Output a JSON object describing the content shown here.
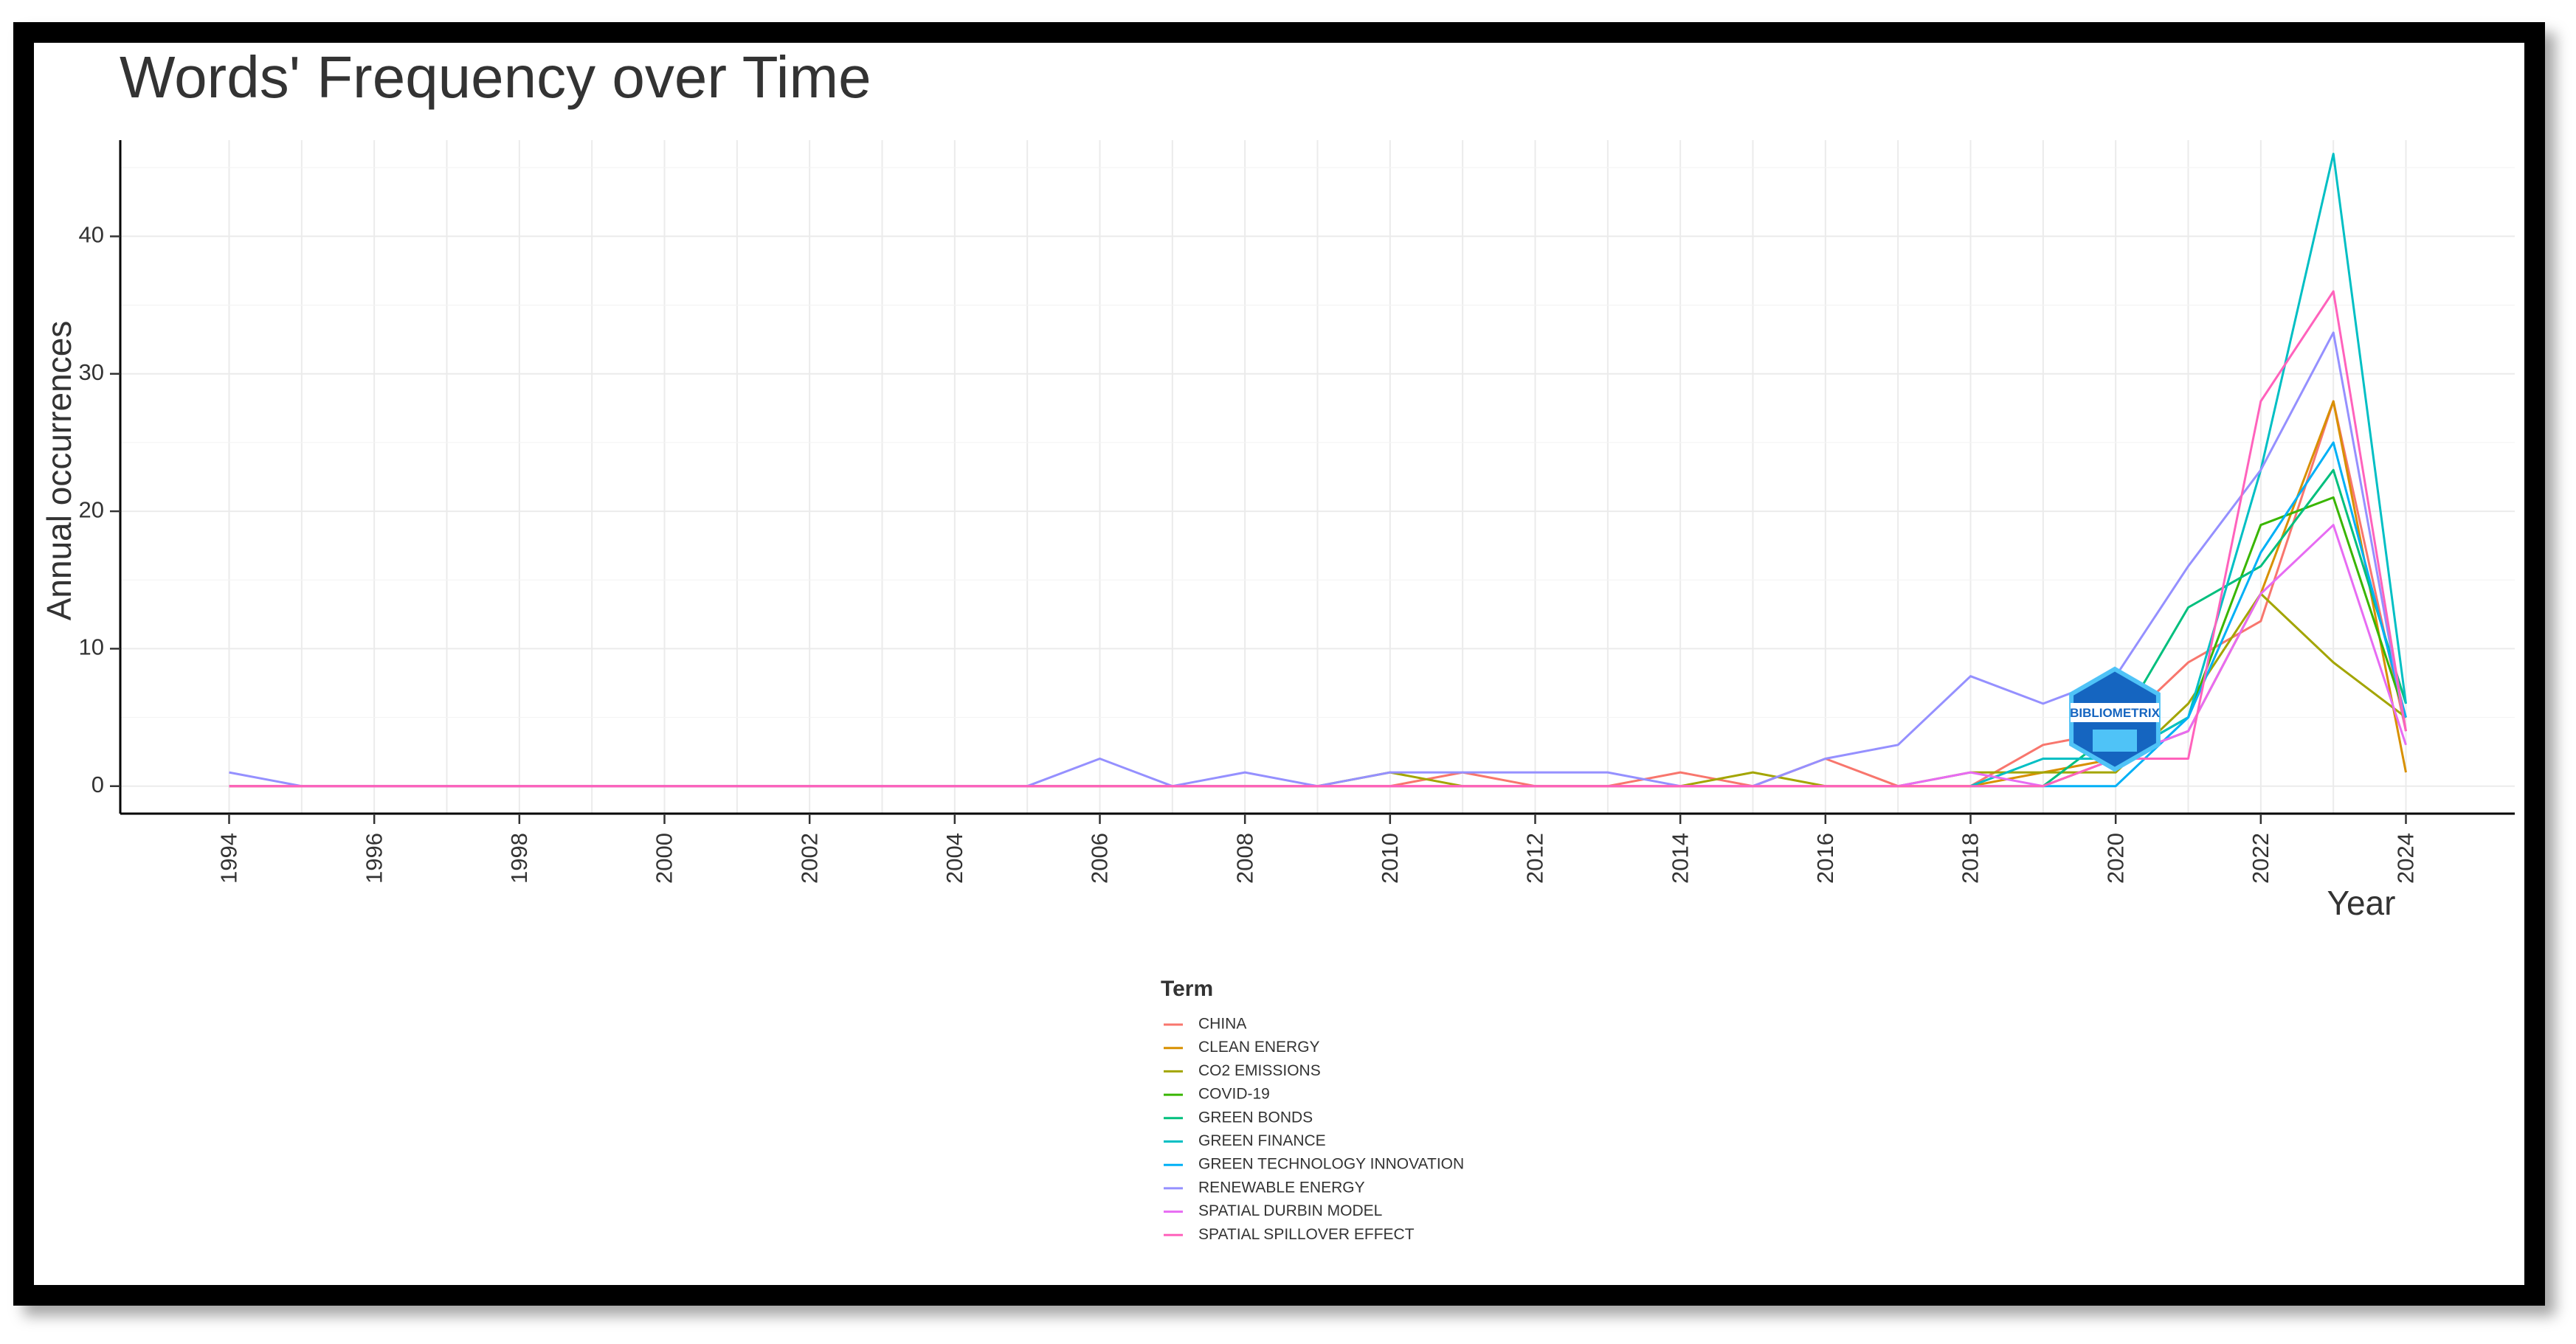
{
  "chart_data": {
    "type": "line",
    "title": "Words' Frequency over Time",
    "xlabel": "Year",
    "ylabel": "Annual occurrences",
    "xlim": [
      1992.5,
      2025.5
    ],
    "ylim": [
      -2,
      47
    ],
    "x_ticks": [
      1994,
      1996,
      1998,
      2000,
      2002,
      2004,
      2006,
      2008,
      2010,
      2012,
      2014,
      2016,
      2018,
      2020,
      2022,
      2024
    ],
    "y_ticks": [
      0,
      10,
      20,
      30,
      40
    ],
    "grid": true,
    "legend_position": "bottom",
    "legend_title": "Term",
    "series": [
      {
        "name": "CHINA",
        "color": "#F8766D",
        "x": [
          1994,
          1995,
          1996,
          1997,
          1998,
          1999,
          2000,
          2001,
          2002,
          2003,
          2004,
          2005,
          2006,
          2007,
          2008,
          2009,
          2010,
          2011,
          2012,
          2013,
          2014,
          2015,
          2016,
          2017,
          2018,
          2019,
          2020,
          2021,
          2022,
          2023,
          2024
        ],
        "y": [
          0,
          0,
          0,
          0,
          0,
          0,
          0,
          0,
          0,
          0,
          0,
          0,
          0,
          0,
          0,
          0,
          0,
          1,
          0,
          0,
          1,
          0,
          2,
          0,
          0,
          3,
          4,
          9,
          12,
          28,
          4
        ]
      },
      {
        "name": "CLEAN ENERGY",
        "color": "#D89000",
        "x": [
          1994,
          1995,
          1996,
          1997,
          1998,
          1999,
          2000,
          2001,
          2002,
          2003,
          2004,
          2005,
          2006,
          2007,
          2008,
          2009,
          2010,
          2011,
          2012,
          2013,
          2014,
          2015,
          2016,
          2017,
          2018,
          2019,
          2020,
          2021,
          2022,
          2023,
          2024
        ],
        "y": [
          0,
          0,
          0,
          0,
          0,
          0,
          0,
          0,
          0,
          0,
          0,
          0,
          0,
          0,
          0,
          0,
          0,
          0,
          0,
          0,
          0,
          0,
          0,
          0,
          0,
          1,
          2,
          4,
          14,
          28,
          1
        ]
      },
      {
        "name": "CO2 EMISSIONS",
        "color": "#A3A500",
        "x": [
          1994,
          1995,
          1996,
          1997,
          1998,
          1999,
          2000,
          2001,
          2002,
          2003,
          2004,
          2005,
          2006,
          2007,
          2008,
          2009,
          2010,
          2011,
          2012,
          2013,
          2014,
          2015,
          2016,
          2017,
          2018,
          2019,
          2020,
          2021,
          2022,
          2023,
          2024
        ],
        "y": [
          0,
          0,
          0,
          0,
          0,
          0,
          0,
          0,
          0,
          0,
          0,
          0,
          0,
          0,
          0,
          0,
          1,
          0,
          0,
          0,
          0,
          1,
          0,
          0,
          1,
          1,
          1,
          6,
          14,
          9,
          5
        ]
      },
      {
        "name": "COVID-19",
        "color": "#39B600",
        "x": [
          2019,
          2020,
          2021,
          2022,
          2023,
          2024
        ],
        "y": [
          0,
          2,
          5,
          19,
          21,
          5
        ]
      },
      {
        "name": "GREEN BONDS",
        "color": "#00BF7D",
        "x": [
          2018,
          2019,
          2020,
          2021,
          2022,
          2023,
          2024
        ],
        "y": [
          0,
          0,
          4,
          13,
          16,
          23,
          6
        ]
      },
      {
        "name": "GREEN FINANCE",
        "color": "#00BFC4",
        "x": [
          2018,
          2019,
          2020,
          2021,
          2022,
          2023,
          2024
        ],
        "y": [
          0,
          2,
          2,
          5,
          23,
          46,
          6
        ]
      },
      {
        "name": "GREEN TECHNOLOGY INNOVATION",
        "color": "#00B0F6",
        "x": [
          2019,
          2020,
          2021,
          2022,
          2023,
          2024
        ],
        "y": [
          0,
          0,
          5,
          17,
          25,
          5
        ]
      },
      {
        "name": "RENEWABLE ENERGY",
        "color": "#9590FF",
        "x": [
          1994,
          1995,
          1996,
          1997,
          1998,
          1999,
          2000,
          2001,
          2002,
          2003,
          2004,
          2005,
          2006,
          2007,
          2008,
          2009,
          2010,
          2011,
          2012,
          2013,
          2014,
          2015,
          2016,
          2017,
          2018,
          2019,
          2020,
          2021,
          2022,
          2023,
          2024
        ],
        "y": [
          1,
          0,
          0,
          0,
          0,
          0,
          0,
          0,
          0,
          0,
          0,
          0,
          2,
          0,
          1,
          0,
          1,
          1,
          1,
          1,
          0,
          0,
          2,
          3,
          8,
          6,
          8,
          16,
          23,
          33,
          4
        ]
      },
      {
        "name": "SPATIAL DURBIN MODEL",
        "color": "#E76BF3",
        "x": [
          1994,
          1995,
          1996,
          1997,
          1998,
          1999,
          2000,
          2001,
          2002,
          2003,
          2004,
          2005,
          2006,
          2007,
          2008,
          2009,
          2010,
          2011,
          2012,
          2013,
          2014,
          2015,
          2016,
          2017,
          2018,
          2019,
          2020,
          2021,
          2022,
          2023,
          2024
        ],
        "y": [
          0,
          0,
          0,
          0,
          0,
          0,
          0,
          0,
          0,
          0,
          0,
          0,
          0,
          0,
          0,
          0,
          0,
          0,
          0,
          0,
          0,
          0,
          0,
          0,
          1,
          0,
          2,
          4,
          14,
          19,
          3
        ]
      },
      {
        "name": "SPATIAL SPILLOVER EFFECT",
        "color": "#FF62BC",
        "x": [
          1994,
          1995,
          1996,
          1997,
          1998,
          1999,
          2000,
          2001,
          2002,
          2003,
          2004,
          2005,
          2006,
          2007,
          2008,
          2009,
          2010,
          2011,
          2012,
          2013,
          2014,
          2015,
          2016,
          2017,
          2018,
          2019,
          2020,
          2021,
          2022,
          2023,
          2024
        ],
        "y": [
          0,
          0,
          0,
          0,
          0,
          0,
          0,
          0,
          0,
          0,
          0,
          0,
          0,
          0,
          0,
          0,
          0,
          0,
          0,
          0,
          0,
          0,
          0,
          0,
          0,
          0,
          2,
          2,
          28,
          36,
          4
        ]
      }
    ]
  },
  "watermark": {
    "text": "BIBLIOMETRIX",
    "colors": {
      "primary": "#1565C0",
      "secondary": "#4FC3F7"
    }
  }
}
